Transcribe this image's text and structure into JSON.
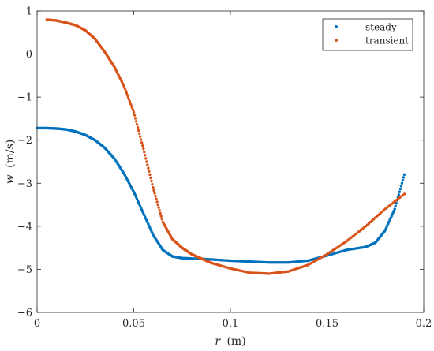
{
  "chart_data": {
    "type": "scatter",
    "xlabel_var": "r",
    "xlabel_unit": "(m)",
    "ylabel_var": "w",
    "ylabel_unit": "(m/s)",
    "xlim": [
      0,
      0.2
    ],
    "ylim": [
      -6,
      1
    ],
    "xticks": [
      0,
      0.05,
      0.1,
      0.15,
      0.2
    ],
    "xtick_labels": [
      "0",
      "0.05",
      "0.1",
      "0.15",
      "0.2"
    ],
    "yticks": [
      1,
      0,
      -1,
      -2,
      -3,
      -4,
      -5,
      -6
    ],
    "ytick_labels": [
      "1",
      "0",
      "−1",
      "−2",
      "−3",
      "−4",
      "−5",
      "−6"
    ],
    "grid": false,
    "legend_position": "top-right",
    "series": [
      {
        "name": "steady",
        "color": "#0072BD",
        "points": [
          [
            0.0,
            -1.72
          ],
          [
            0.005,
            -1.72
          ],
          [
            0.01,
            -1.73
          ],
          [
            0.015,
            -1.75
          ],
          [
            0.02,
            -1.8
          ],
          [
            0.025,
            -1.88
          ],
          [
            0.03,
            -2.0
          ],
          [
            0.035,
            -2.18
          ],
          [
            0.04,
            -2.43
          ],
          [
            0.045,
            -2.78
          ],
          [
            0.05,
            -3.2
          ],
          [
            0.055,
            -3.7
          ],
          [
            0.06,
            -4.2
          ],
          [
            0.065,
            -4.55
          ],
          [
            0.07,
            -4.7
          ],
          [
            0.075,
            -4.74
          ],
          [
            0.08,
            -4.75
          ],
          [
            0.09,
            -4.77
          ],
          [
            0.1,
            -4.8
          ],
          [
            0.11,
            -4.82
          ],
          [
            0.12,
            -4.84
          ],
          [
            0.13,
            -4.84
          ],
          [
            0.14,
            -4.8
          ],
          [
            0.15,
            -4.68
          ],
          [
            0.16,
            -4.55
          ],
          [
            0.17,
            -4.48
          ],
          [
            0.175,
            -4.38
          ],
          [
            0.18,
            -4.1
          ],
          [
            0.185,
            -3.6
          ],
          [
            0.19,
            -2.8
          ]
        ]
      },
      {
        "name": "transient",
        "color": "#D95319",
        "points": [
          [
            0.005,
            0.8
          ],
          [
            0.01,
            0.78
          ],
          [
            0.015,
            0.73
          ],
          [
            0.02,
            0.67
          ],
          [
            0.025,
            0.55
          ],
          [
            0.03,
            0.35
          ],
          [
            0.035,
            0.05
          ],
          [
            0.04,
            -0.3
          ],
          [
            0.045,
            -0.75
          ],
          [
            0.05,
            -1.35
          ],
          [
            0.055,
            -2.2
          ],
          [
            0.06,
            -3.1
          ],
          [
            0.065,
            -3.9
          ],
          [
            0.07,
            -4.3
          ],
          [
            0.075,
            -4.5
          ],
          [
            0.08,
            -4.65
          ],
          [
            0.085,
            -4.75
          ],
          [
            0.09,
            -4.85
          ],
          [
            0.1,
            -4.98
          ],
          [
            0.11,
            -5.08
          ],
          [
            0.12,
            -5.1
          ],
          [
            0.13,
            -5.05
          ],
          [
            0.14,
            -4.9
          ],
          [
            0.15,
            -4.65
          ],
          [
            0.16,
            -4.35
          ],
          [
            0.17,
            -4.0
          ],
          [
            0.18,
            -3.6
          ],
          [
            0.19,
            -3.25
          ]
        ]
      }
    ]
  }
}
